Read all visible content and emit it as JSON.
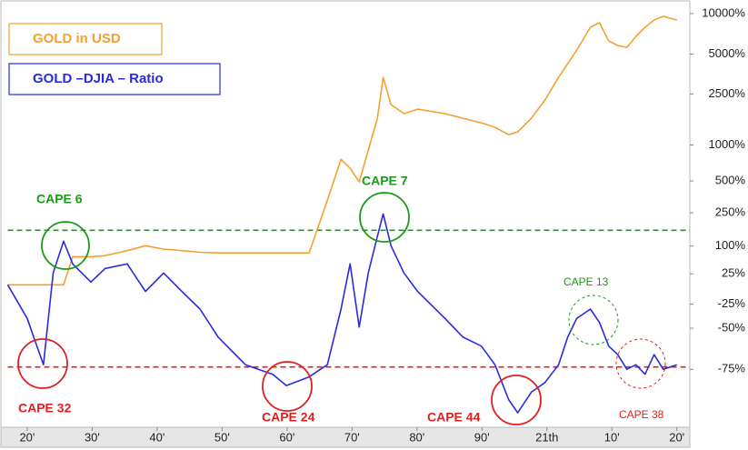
{
  "chart_data": {
    "type": "line",
    "y_scale": "log",
    "x": [
      1917,
      1920,
      1922.5,
      1924,
      1925.6,
      1927,
      1929.8,
      1932,
      1935.4,
      1938.2,
      1941,
      1943.8,
      1946.6,
      1949.4,
      1953.6,
      1957.8,
      1959.9,
      1963.4,
      1966.2,
      1968.3,
      1969.7,
      1971.1,
      1972.5,
      1973.9,
      1974.8,
      1976,
      1978,
      1980.1,
      1984.3,
      1987.1,
      1989.9,
      1992,
      1994.1,
      1995.5,
      1997.6,
      1999.7,
      2001.8,
      2003.2,
      2004.6,
      2006.7,
      2008.1,
      2009.5,
      2010.9,
      2012.3,
      2013.7,
      2015.1,
      2016.5,
      2017.9,
      2020
    ],
    "series": [
      {
        "name": "GOLD in USD",
        "color": "#f5a030",
        "values": [
          4,
          4,
          4,
          4,
          4,
          67,
          67,
          70,
          85,
          101,
          90,
          85,
          80,
          78,
          78,
          78,
          78,
          78,
          333,
          765,
          643,
          490,
          909,
          1626,
          3344,
          2073,
          1766,
          1914,
          1766,
          1626,
          1500,
          1383,
          1209,
          1271,
          1626,
          2250,
          3344,
          4235,
          5358,
          7918,
          8549,
          6270,
          5802,
          5600,
          6770,
          7918,
          8960,
          9538,
          8960
        ]
      },
      {
        "name": "GOLD –DJIA – Ratio",
        "color": "#2a2ae0",
        "values": [
          4,
          -41,
          -73,
          27,
          117,
          48,
          9,
          37,
          48,
          -7,
          27,
          -7,
          -31,
          -57,
          -73,
          -77,
          -81,
          -78,
          -73,
          -31,
          48,
          -49,
          27,
          135,
          244,
          101,
          27,
          -7,
          -41,
          -57,
          -63,
          -73,
          -85,
          -88,
          -83,
          -80,
          -73,
          -57,
          -41,
          -31,
          -45,
          -63,
          -68,
          -75,
          -73,
          -77,
          -68,
          -75,
          -73
        ]
      }
    ],
    "xlim": [
      1917,
      2022
    ],
    "xticks": [
      {
        "value": 1920,
        "label": "20'"
      },
      {
        "value": 1930,
        "label": "30'"
      },
      {
        "value": 1940,
        "label": "40'"
      },
      {
        "value": 1950,
        "label": "50'"
      },
      {
        "value": 1960,
        "label": "60'"
      },
      {
        "value": 1970,
        "label": "70'"
      },
      {
        "value": 1980,
        "label": "80'"
      },
      {
        "value": 1990,
        "label": "90'"
      },
      {
        "value": 2000,
        "label": "21th"
      },
      {
        "value": 2010,
        "label": "10'"
      },
      {
        "value": 2020,
        "label": "20'"
      }
    ],
    "ylim": [
      -90.6,
      12600
    ],
    "yticks": [
      {
        "value": 10000,
        "label": "10000%"
      },
      {
        "value": 5000,
        "label": "5000%"
      },
      {
        "value": 2500,
        "label": "2500%"
      },
      {
        "value": 1000,
        "label": "1000%"
      },
      {
        "value": 500,
        "label": "500%"
      },
      {
        "value": 250,
        "label": "250%"
      },
      {
        "value": 100,
        "label": "100%"
      },
      {
        "value": 25,
        "label": "25%"
      },
      {
        "value": -25,
        "label": "-25%"
      },
      {
        "value": -50,
        "label": "-50%"
      },
      {
        "value": -75,
        "label": "-75%"
      }
    ],
    "reference_lines": [
      {
        "value": 161,
        "color": "#1a9a1a"
      },
      {
        "value": -74,
        "color": "#e02020"
      }
    ],
    "annotations": [
      {
        "text": "CAPE 6",
        "color": "#1a9a1a"
      },
      {
        "text": "CAPE 32",
        "color": "#e02020"
      },
      {
        "text": "CAPE 24",
        "color": "#e02020"
      },
      {
        "text": "CAPE 7",
        "color": "#1a9a1a"
      },
      {
        "text": "CAPE 44",
        "color": "#e02020"
      },
      {
        "text": "CAPE 13",
        "color": "#1a9a1a"
      },
      {
        "text": "CAPE 38",
        "color": "#e02020"
      }
    ]
  }
}
